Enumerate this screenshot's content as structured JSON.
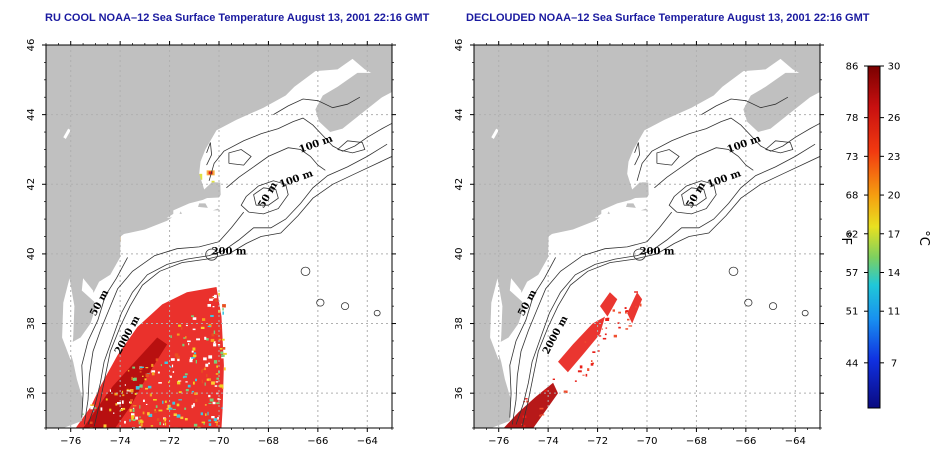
{
  "panels": [
    {
      "title": "RU COOL NOAA–12 Sea Surface Temperature August 13, 2001 22:16 GMT",
      "variant": "cloudy"
    },
    {
      "title": "DECLOUDED NOAA–12 Sea Surface Temperature August 13, 2001 22:16 GMT",
      "variant": "declouded"
    }
  ],
  "axes": {
    "x_ticks": [
      -76,
      -74,
      -72,
      -70,
      -68,
      -66,
      -64
    ],
    "y_ticks": [
      36,
      38,
      40,
      42,
      44,
      46
    ],
    "lon_range": [
      -77,
      -63
    ],
    "lat_range": [
      35,
      46
    ]
  },
  "contour_labels": [
    {
      "text": "100 m",
      "lon": -66.7,
      "lat": 42.9
    },
    {
      "text": "100 m",
      "lon": -67.5,
      "lat": 41.9
    },
    {
      "text": "50 m",
      "lon": -68.2,
      "lat": 41.3
    },
    {
      "text": "200 m",
      "lon": -70.3,
      "lat": 39.98
    },
    {
      "text": "50 m",
      "lon": -75.0,
      "lat": 38.2
    },
    {
      "text": "2000 m",
      "lon": -74.0,
      "lat": 37.1
    }
  ],
  "colorbar": {
    "fahrenheit_ticks": [
      "86",
      "78",
      "73",
      "68",
      "62",
      "57",
      "51",
      "44"
    ],
    "celsius_ticks": [
      "30",
      "26",
      "23",
      "20",
      "17",
      "14",
      "11",
      "7"
    ],
    "celsius_range": [
      3.5,
      30
    ],
    "fahrenheit_unit": "°F",
    "celsius_unit": "°C"
  },
  "colors": {
    "land": "#c0c0c0",
    "water": "#ffffff",
    "grid": "#b0b0b0",
    "title": "#1a1aa0",
    "sst_warm": "#e8201a",
    "sst_hot": "#b30d0d",
    "sst_mid": "#f6a020"
  }
}
